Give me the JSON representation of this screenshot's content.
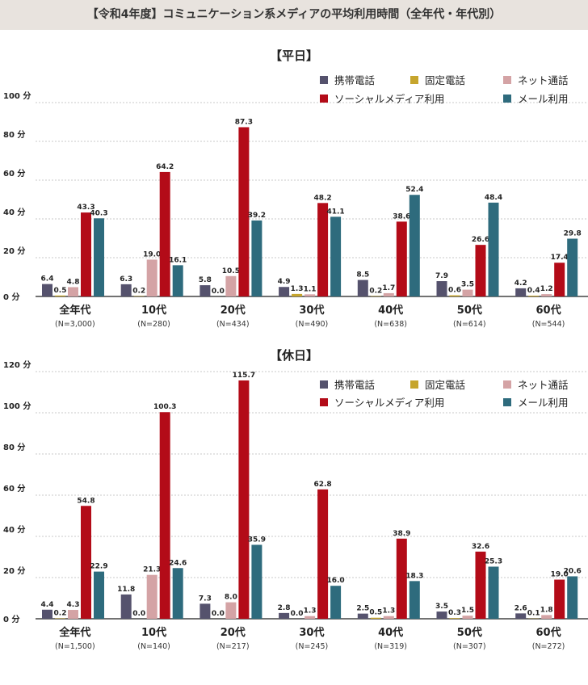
{
  "header": {
    "title": "【令和4年度】コミュニケーション系メディアの平均利用時間（全年代・年代別）"
  },
  "colors": {
    "携帯電話": "#55526d",
    "固定電話": "#c6a52d",
    "ネット通話": "#d4a3a5",
    "ソーシャルメディア利用": "#b30b18",
    "メール利用": "#2e6b7d"
  },
  "chart_data": [
    {
      "type": "bar",
      "title": "【平日】",
      "unit": "分",
      "ylim": [
        0,
        100
      ],
      "yticks": [
        "0 分",
        "20 分",
        "40 分",
        "60 分",
        "80 分",
        "100 分"
      ],
      "categories": [
        "全年代",
        "10代",
        "20代",
        "30代",
        "40代",
        "50代",
        "60代"
      ],
      "samples": [
        "(N=3,000)",
        "(N=280)",
        "(N=434)",
        "(N=490)",
        "(N=638)",
        "(N=614)",
        "(N=544)"
      ],
      "series": [
        {
          "name": "携帯電話",
          "values": [
            6.4,
            6.3,
            5.8,
            4.9,
            8.5,
            7.9,
            4.2
          ],
          "labels": [
            "6.4",
            "6.3",
            "5.8",
            "4.9",
            "8.5",
            "7.9",
            "4.2"
          ]
        },
        {
          "name": "固定電話",
          "values": [
            0.5,
            0.2,
            0.0,
            1.3,
            0.2,
            0.6,
            0.4
          ],
          "labels": [
            "0.5",
            "0.2",
            "0.0",
            "1.3",
            "0.2",
            "0.6",
            "0.4"
          ]
        },
        {
          "name": "ネット通話",
          "values": [
            4.8,
            19.0,
            10.5,
            1.1,
            1.7,
            3.5,
            1.2
          ],
          "labels": [
            "4.8",
            "19.0",
            "10.5",
            "1.1",
            "1.7",
            "3.5",
            "1.2"
          ]
        },
        {
          "name": "ソーシャルメディア利用",
          "values": [
            43.3,
            64.2,
            87.3,
            48.2,
            38.6,
            26.6,
            17.4
          ],
          "labels": [
            "43.3",
            "64.2",
            "87.3",
            "48.2",
            "38.6",
            "26.6",
            "17.4"
          ]
        },
        {
          "name": "メール利用",
          "values": [
            40.3,
            16.1,
            39.2,
            41.1,
            52.4,
            48.4,
            29.8
          ],
          "labels": [
            "40.3",
            "16.1",
            "39.2",
            "41.1",
            "52.4",
            "48.4",
            "29.8"
          ]
        }
      ]
    },
    {
      "type": "bar",
      "title": "【休日】",
      "unit": "分",
      "ylim": [
        0,
        120
      ],
      "yticks": [
        "0 分",
        "20 分",
        "40 分",
        "60 分",
        "80 分",
        "100 分",
        "120 分"
      ],
      "categories": [
        "全年代",
        "10代",
        "20代",
        "30代",
        "40代",
        "50代",
        "60代"
      ],
      "samples": [
        "(N=1,500)",
        "(N=140)",
        "(N=217)",
        "(N=245)",
        "(N=319)",
        "(N=307)",
        "(N=272)"
      ],
      "series": [
        {
          "name": "携帯電話",
          "values": [
            4.4,
            11.8,
            7.3,
            2.8,
            2.5,
            3.5,
            2.6
          ],
          "labels": [
            "4.4",
            "11.8",
            "7.3",
            "2.8",
            "2.5",
            "3.5",
            "2.6"
          ]
        },
        {
          "name": "固定電話",
          "values": [
            0.2,
            0.0,
            0.0,
            0.0,
            0.5,
            0.3,
            0.1
          ],
          "labels": [
            "0.2",
            "0.0",
            "0.0",
            "0.0",
            "0.5",
            "0.3",
            "0.1"
          ]
        },
        {
          "name": "ネット通話",
          "values": [
            4.3,
            21.3,
            8.0,
            1.3,
            1.3,
            1.5,
            1.8
          ],
          "labels": [
            "4.3",
            "21.3",
            "8.0",
            "1.3",
            "1.3",
            "1.5",
            "1.8"
          ]
        },
        {
          "name": "ソーシャルメディア利用",
          "values": [
            54.8,
            100.3,
            115.7,
            62.8,
            38.9,
            32.6,
            19.0
          ],
          "labels": [
            "54.8",
            "100.3",
            "115.7",
            "62.8",
            "38.9",
            "32.6",
            "19.0"
          ]
        },
        {
          "name": "メール利用",
          "values": [
            22.9,
            24.6,
            35.9,
            16.0,
            18.3,
            25.3,
            20.6
          ],
          "labels": [
            "22.9",
            "24.6",
            "35.9",
            "16.0",
            "18.3",
            "25.3",
            "20.6"
          ]
        }
      ]
    }
  ]
}
